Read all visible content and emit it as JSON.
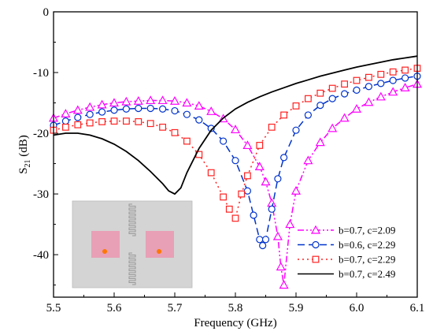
{
  "chart_data": {
    "type": "line",
    "title": "",
    "xlabel": "Frequency (GHz)",
    "ylabel_main": "S",
    "ylabel_sub": "21",
    "ylabel_unit": " (dB)",
    "xlim": [
      5.5,
      6.1
    ],
    "ylim": [
      -47,
      0
    ],
    "xticks": [
      5.5,
      5.6,
      5.7,
      5.8,
      5.9,
      6.0,
      6.1
    ],
    "xtick_labels": [
      "5.5",
      "5.6",
      "5.7",
      "5.8",
      "5.9",
      "6.0",
      "6.1"
    ],
    "yticks": [
      0,
      -10,
      -20,
      -30,
      -40
    ],
    "ytick_labels": [
      "0",
      "-10",
      "-20",
      "-30",
      "-40"
    ],
    "grid": false,
    "legend_position": "bottom-right",
    "series": [
      {
        "name": "b=0.7, c=2.09",
        "color": "#ff00ff",
        "dash": "dash-dot-dot",
        "marker": "triangle",
        "x": [
          5.5,
          5.52,
          5.54,
          5.56,
          5.58,
          5.6,
          5.62,
          5.64,
          5.66,
          5.68,
          5.7,
          5.72,
          5.74,
          5.76,
          5.78,
          5.8,
          5.82,
          5.84,
          5.85,
          5.86,
          5.87,
          5.875,
          5.88,
          5.89,
          5.9,
          5.92,
          5.94,
          5.96,
          5.98,
          6.0,
          6.02,
          6.04,
          6.06,
          6.08,
          6.1
        ],
        "y": [
          -17.5,
          -16.8,
          -16.2,
          -15.7,
          -15.3,
          -15.0,
          -14.8,
          -14.7,
          -14.6,
          -14.6,
          -14.7,
          -15.0,
          -15.5,
          -16.4,
          -17.6,
          -19.4,
          -22.0,
          -25.5,
          -28.0,
          -31.5,
          -37.0,
          -42.0,
          -45.0,
          -35.0,
          -29.5,
          -24.5,
          -21.5,
          -19.2,
          -17.5,
          -16.0,
          -14.9,
          -14.0,
          -13.2,
          -12.5,
          -11.9
        ]
      },
      {
        "name": "b=0.6, c=2.29",
        "color": "#0033cc",
        "dash": "dash",
        "marker": "circle",
        "x": [
          5.5,
          5.52,
          5.54,
          5.56,
          5.58,
          5.6,
          5.62,
          5.64,
          5.66,
          5.68,
          5.7,
          5.72,
          5.74,
          5.76,
          5.78,
          5.8,
          5.82,
          5.83,
          5.84,
          5.845,
          5.85,
          5.86,
          5.87,
          5.88,
          5.9,
          5.92,
          5.94,
          5.96,
          5.98,
          6.0,
          6.02,
          6.04,
          6.06,
          6.08,
          6.1
        ],
        "y": [
          -18.7,
          -18.0,
          -17.4,
          -16.9,
          -16.5,
          -16.2,
          -16.0,
          -15.9,
          -15.9,
          -16.0,
          -16.3,
          -16.9,
          -17.8,
          -19.2,
          -21.3,
          -24.5,
          -29.5,
          -33.5,
          -37.5,
          -38.5,
          -37.5,
          -32.5,
          -27.5,
          -24.0,
          -19.5,
          -17.0,
          -15.4,
          -14.3,
          -13.5,
          -12.9,
          -12.3,
          -11.8,
          -11.3,
          -10.9,
          -10.6
        ]
      },
      {
        "name": "b=0.7, c=2.29",
        "color": "#ff2222",
        "dash": "dot",
        "marker": "square",
        "x": [
          5.5,
          5.52,
          5.54,
          5.56,
          5.58,
          5.6,
          5.62,
          5.64,
          5.66,
          5.68,
          5.7,
          5.72,
          5.74,
          5.76,
          5.78,
          5.79,
          5.8,
          5.81,
          5.82,
          5.84,
          5.86,
          5.88,
          5.9,
          5.92,
          5.94,
          5.96,
          5.98,
          6.0,
          6.02,
          6.04,
          6.06,
          6.08,
          6.1
        ],
        "y": [
          -19.5,
          -19.0,
          -18.6,
          -18.3,
          -18.1,
          -18.0,
          -18.0,
          -18.1,
          -18.4,
          -19.0,
          -19.9,
          -21.3,
          -23.5,
          -26.5,
          -30.5,
          -32.5,
          -34.0,
          -30.0,
          -27.0,
          -22.0,
          -19.0,
          -17.0,
          -15.5,
          -14.3,
          -13.4,
          -12.6,
          -11.9,
          -11.3,
          -10.8,
          -10.3,
          -9.9,
          -9.6,
          -9.3
        ]
      },
      {
        "name": "b=0.7, c=2.49",
        "color": "#000000",
        "dash": "solid",
        "marker": "none",
        "x": [
          5.5,
          5.52,
          5.54,
          5.56,
          5.58,
          5.6,
          5.62,
          5.64,
          5.66,
          5.68,
          5.69,
          5.7,
          5.71,
          5.72,
          5.74,
          5.76,
          5.78,
          5.8,
          5.82,
          5.84,
          5.86,
          5.88,
          5.9,
          5.92,
          5.94,
          5.96,
          5.98,
          6.0,
          6.02,
          6.04,
          6.06,
          6.08,
          6.1
        ],
        "y": [
          -20.3,
          -20.0,
          -20.0,
          -20.3,
          -20.9,
          -21.8,
          -23.0,
          -24.5,
          -26.3,
          -28.3,
          -29.5,
          -30.0,
          -29.0,
          -26.5,
          -22.5,
          -19.5,
          -17.5,
          -16.0,
          -14.9,
          -14.0,
          -13.2,
          -12.5,
          -11.8,
          -11.2,
          -10.6,
          -10.1,
          -9.6,
          -9.1,
          -8.7,
          -8.3,
          -7.9,
          -7.6,
          -7.3
        ]
      }
    ]
  },
  "inset": {
    "background": "#d4d4d4",
    "patch_color": "#e8a0b6",
    "feed_color": "#ff7700",
    "meander_color": "#999999"
  }
}
